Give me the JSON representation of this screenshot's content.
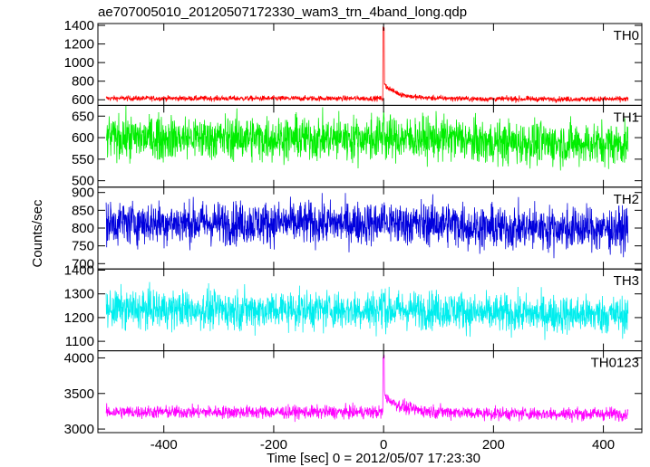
{
  "chart_data": {
    "type": "line",
    "title": "ae707005010_20120507172330_wam3_trn_4band_long.qdp",
    "xlabel": "Time [sec] 0 = 2012/05/07 17:23:30",
    "ylabel": "Counts/sec",
    "xlim": [
      -520,
      470
    ],
    "xticks": [
      -400,
      -200,
      0,
      200,
      400
    ],
    "panels": [
      {
        "label": "TH0",
        "color": "#ff0000",
        "ylim": [
          540,
          1420
        ],
        "yticks": [
          600,
          800,
          1000,
          1200,
          1400
        ],
        "baseline": 615,
        "noise": 14,
        "peak": 1400,
        "decay_amplitude": 160,
        "decay_tau": 25,
        "x_start": -505,
        "x_end": 445
      },
      {
        "label": "TH1",
        "color": "#00ee00",
        "ylim": [
          485,
          675
        ],
        "yticks": [
          500,
          550,
          600,
          650
        ],
        "baseline": 600,
        "noise": 25,
        "peak": 665,
        "decay_amplitude": 0,
        "decay_tau": 25,
        "x_start": -505,
        "x_end": 445
      },
      {
        "label": "TH2",
        "color": "#0000dd",
        "ylim": [
          685,
          915
        ],
        "yticks": [
          700,
          750,
          800,
          850,
          900
        ],
        "baseline": 815,
        "noise": 30,
        "peak": 880,
        "decay_amplitude": 0,
        "decay_tau": 25,
        "x_start": -505,
        "x_end": 445
      },
      {
        "label": "TH3",
        "color": "#00eeee",
        "ylim": [
          1060,
          1405
        ],
        "yticks": [
          1100,
          1200,
          1300,
          1400
        ],
        "baseline": 1235,
        "noise": 40,
        "peak": 1320,
        "decay_amplitude": 0,
        "decay_tau": 25,
        "x_start": -505,
        "x_end": 445
      },
      {
        "label": "TH0123",
        "color": "#ff00ff",
        "ylim": [
          2950,
          4100
        ],
        "yticks": [
          3000,
          3500,
          4000
        ],
        "baseline": 3240,
        "noise": 45,
        "peak": 4050,
        "decay_amplitude": 250,
        "decay_tau": 30,
        "x_start": -505,
        "x_end": 445
      }
    ]
  }
}
